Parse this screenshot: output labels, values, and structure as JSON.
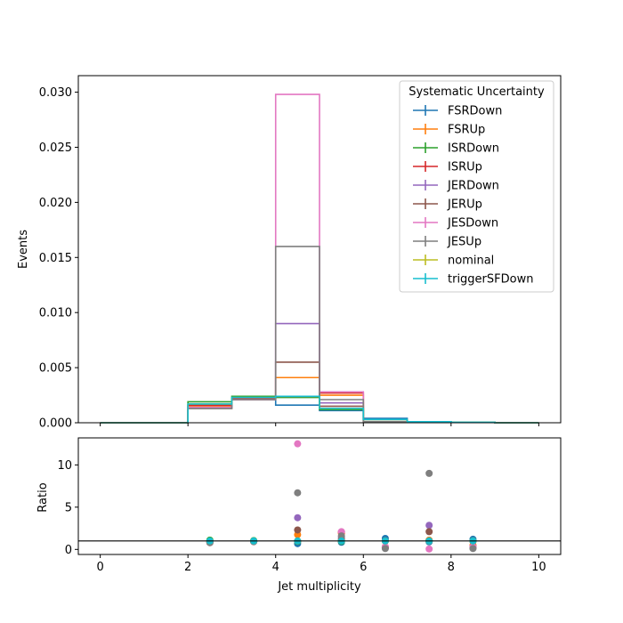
{
  "chart_data": [
    {
      "type": "step",
      "panel": "main",
      "ylabel": "Events",
      "xlim": [
        -0.5,
        10.5
      ],
      "ylim": [
        0,
        0.0315
      ],
      "yticks": [
        0.0,
        0.005,
        0.01,
        0.015,
        0.02,
        0.025,
        0.03
      ],
      "ytick_labels": [
        "0.000",
        "0.005",
        "0.010",
        "0.015",
        "0.020",
        "0.025",
        "0.030"
      ],
      "bin_edges": [
        0,
        1,
        2,
        3,
        4,
        5,
        6,
        7,
        8,
        9,
        10
      ],
      "legend": {
        "title": "Systematic Uncertainty",
        "placement": "top-right"
      },
      "series": [
        {
          "name": "FSRDown",
          "color": "#1f77b4",
          "values": [
            0,
            0,
            0.0016,
            0.0022,
            0.0016,
            0.0011,
            0.0004,
            0.0001,
            5e-05,
            0
          ]
        },
        {
          "name": "FSRUp",
          "color": "#ff7f0e",
          "values": [
            0,
            0,
            0.0015,
            0.0021,
            0.0041,
            0.0025,
            0.0001,
            0.0001,
            5e-05,
            0
          ]
        },
        {
          "name": "ISRDown",
          "color": "#2ca02c",
          "values": [
            0,
            0,
            0.0019,
            0.0024,
            0.0023,
            0.0012,
            0.0003,
            0.0001,
            5e-05,
            0
          ]
        },
        {
          "name": "ISRUp",
          "color": "#d62728",
          "values": [
            0,
            0,
            0.0016,
            0.0022,
            0.0024,
            0.0027,
            0.0003,
            0.0001,
            5e-05,
            0
          ]
        },
        {
          "name": "JERDown",
          "color": "#9467bd",
          "values": [
            0,
            0,
            0.0014,
            0.0021,
            0.009,
            0.0018,
            0.0001,
            0.0001,
            5e-05,
            0
          ]
        },
        {
          "name": "JERUp",
          "color": "#8c564b",
          "values": [
            0,
            0,
            0.0013,
            0.0021,
            0.0055,
            0.0015,
            0.0001,
            0.0001,
            5e-05,
            0
          ]
        },
        {
          "name": "JESDown",
          "color": "#e377c2",
          "values": [
            0,
            0,
            0.0014,
            0.0021,
            0.0298,
            0.0028,
            0.0001,
            0.0001,
            5e-05,
            0
          ]
        },
        {
          "name": "JESUp",
          "color": "#7f7f7f",
          "values": [
            0,
            0,
            0.0013,
            0.0021,
            0.016,
            0.0021,
            0.0001,
            0.0001,
            5e-05,
            0
          ]
        },
        {
          "name": "nominal",
          "color": "#bcbd22",
          "values": [
            0,
            0,
            0.0017,
            0.0023,
            0.0024,
            0.0013,
            0.0003,
            0.0001,
            5e-05,
            0
          ]
        },
        {
          "name": "triggerSFDown",
          "color": "#17becf",
          "values": [
            0,
            0,
            0.0017,
            0.0023,
            0.0024,
            0.0013,
            0.0003,
            0.0001,
            5e-05,
            0
          ]
        }
      ]
    },
    {
      "type": "scatter",
      "panel": "ratio",
      "xlabel": "Jet multiplicity",
      "ylabel": "Ratio",
      "xlim": [
        -0.5,
        10.5
      ],
      "ylim": [
        -0.6,
        13.2
      ],
      "xticks": [
        0,
        2,
        4,
        6,
        8,
        10
      ],
      "xtick_labels": [
        "0",
        "2",
        "4",
        "6",
        "8",
        "10"
      ],
      "yticks": [
        0,
        5,
        10
      ],
      "ytick_labels": [
        "0",
        "5",
        "10"
      ],
      "reference_line": 1,
      "x": [
        2.5,
        3.5,
        4.5,
        5.5,
        6.5,
        7.5,
        8.5
      ],
      "series": [
        {
          "name": "FSRDown",
          "color": "#1f77b4",
          "values": [
            0.95,
            0.96,
            0.68,
            0.85,
            1.3,
            0.9,
            1.2
          ]
        },
        {
          "name": "FSRUp",
          "color": "#ff7f0e",
          "values": [
            0.9,
            0.92,
            1.75,
            1.9,
            0.3,
            1.1,
            0.5
          ]
        },
        {
          "name": "ISRDown",
          "color": "#2ca02c",
          "values": [
            1.1,
            1.05,
            0.95,
            0.95,
            1.0,
            1.0,
            1.0
          ]
        },
        {
          "name": "ISRUp",
          "color": "#d62728",
          "values": [
            0.95,
            0.96,
            1.0,
            2.05,
            1.0,
            1.0,
            1.0
          ]
        },
        {
          "name": "JERDown",
          "color": "#9467bd",
          "values": [
            0.85,
            0.92,
            3.75,
            1.4,
            0.2,
            2.85,
            0.3
          ]
        },
        {
          "name": "JERUp",
          "color": "#8c564b",
          "values": [
            0.8,
            0.92,
            2.3,
            1.15,
            0.2,
            2.1,
            0.2
          ]
        },
        {
          "name": "JESDown",
          "color": "#e377c2",
          "values": [
            0.85,
            0.92,
            12.5,
            2.1,
            0.3,
            0.05,
            0.3
          ]
        },
        {
          "name": "JESUp",
          "color": "#7f7f7f",
          "values": [
            0.8,
            0.92,
            6.7,
            1.6,
            0.1,
            9.0,
            0.1
          ]
        },
        {
          "name": "nominal",
          "color": "#bcbd22",
          "values": [
            1.0,
            1.0,
            1.0,
            1.0,
            1.0,
            1.0,
            1.0
          ]
        },
        {
          "name": "triggerSFDown",
          "color": "#17becf",
          "values": [
            1.0,
            1.0,
            1.0,
            1.0,
            1.0,
            1.0,
            1.0
          ]
        }
      ]
    }
  ]
}
